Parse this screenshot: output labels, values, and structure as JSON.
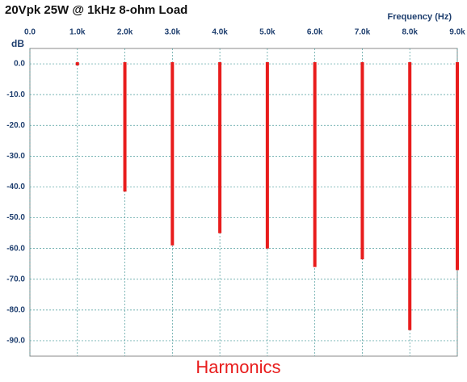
{
  "chart_data": {
    "type": "bar",
    "title": "20Vpk 25W @ 1kHz 8-ohm Load",
    "x_label": "Frequency  (Hz)",
    "y_label": "dB",
    "caption": "Harmonics",
    "x": [
      1000,
      2000,
      3000,
      4000,
      5000,
      6000,
      7000,
      8000,
      9000
    ],
    "series": [
      {
        "color": "#e81c1c",
        "values": [
          0,
          -41,
          -58.5,
          -54.5,
          -59.5,
          -65.5,
          -63,
          -86,
          -66.5
        ]
      }
    ],
    "xlim": [
      0,
      9000
    ],
    "xticks": [
      {
        "value": 0,
        "label": "0.0"
      },
      {
        "value": 1000,
        "label": "1.0k"
      },
      {
        "value": 2000,
        "label": "2.0k"
      },
      {
        "value": 3000,
        "label": "3.0k"
      },
      {
        "value": 4000,
        "label": "4.0k"
      },
      {
        "value": 5000,
        "label": "5.0k"
      },
      {
        "value": 6000,
        "label": "6.0k"
      },
      {
        "value": 7000,
        "label": "7.0k"
      },
      {
        "value": 8000,
        "label": "8.0k"
      },
      {
        "value": 9000,
        "label": "9.0k"
      }
    ],
    "ylim": [
      -95,
      5
    ],
    "yticks": [
      {
        "value": 0,
        "label": "0.0"
      },
      {
        "value": -10,
        "label": "-10.0"
      },
      {
        "value": -20,
        "label": "-20.0"
      },
      {
        "value": -30,
        "label": "-30.0"
      },
      {
        "value": -40,
        "label": "-40.0"
      },
      {
        "value": -50,
        "label": "-50.0"
      },
      {
        "value": -60,
        "label": "-60.0"
      },
      {
        "value": -70,
        "label": "-70.0"
      },
      {
        "value": -80,
        "label": "-80.0"
      },
      {
        "value": -90,
        "label": "-90.0"
      }
    ],
    "grid": true
  }
}
